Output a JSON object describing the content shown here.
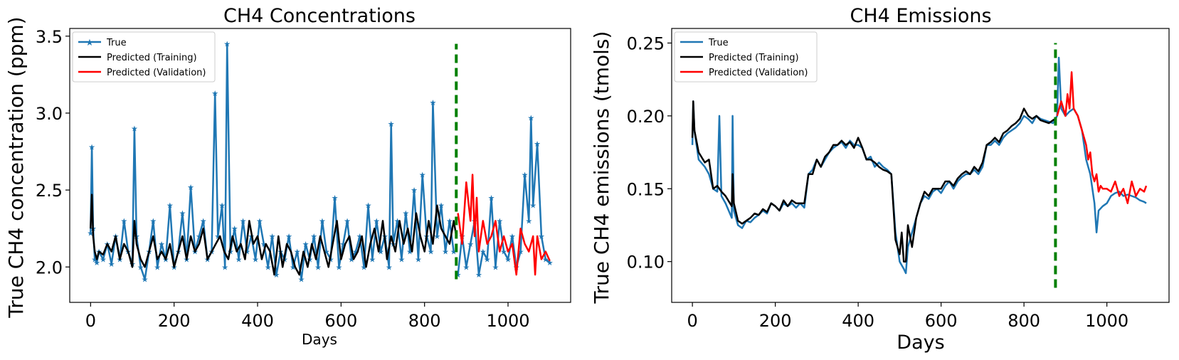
{
  "chart_data": [
    {
      "type": "line",
      "title": "CH4 Concentrations",
      "xlabel": "Days",
      "ylabel": "True CH4 concentration (ppm)",
      "xlim": [
        -50,
        1150
      ],
      "ylim": [
        1.77,
        3.55
      ],
      "xticks": [
        0,
        200,
        400,
        600,
        800,
        1000
      ],
      "yticks": [
        2.0,
        2.5,
        3.0,
        3.5
      ],
      "grid": false,
      "legend_position": "top-left",
      "split_day": 876,
      "split_range": [
        1.92,
        3.45
      ],
      "legend": [
        {
          "label": "True",
          "color": "#1f77b4",
          "marker": "star"
        },
        {
          "label": "Predicted (Training)",
          "color": "#000000"
        },
        {
          "label": "Predicted (Validation)",
          "color": "#ff0000"
        }
      ],
      "series": [
        {
          "name": "True",
          "color": "#1f77b4",
          "x": [
            0,
            3,
            6,
            10,
            15,
            20,
            30,
            40,
            50,
            60,
            70,
            80,
            90,
            100,
            105,
            110,
            120,
            130,
            140,
            150,
            160,
            170,
            180,
            190,
            200,
            210,
            220,
            230,
            240,
            250,
            260,
            270,
            280,
            290,
            298,
            305,
            315,
            322,
            327,
            335,
            345,
            355,
            365,
            375,
            385,
            395,
            405,
            415,
            425,
            435,
            445,
            455,
            465,
            475,
            485,
            495,
            505,
            515,
            525,
            535,
            545,
            555,
            565,
            575,
            585,
            595,
            605,
            615,
            625,
            635,
            645,
            655,
            665,
            675,
            685,
            695,
            705,
            715,
            720,
            725,
            735,
            745,
            755,
            765,
            775,
            785,
            795,
            805,
            815,
            820,
            830,
            840,
            850,
            860,
            870
          ],
          "y": [
            2.22,
            2.78,
            2.25,
            2.05,
            2.03,
            2.1,
            2.05,
            2.15,
            2.02,
            2.2,
            2.05,
            2.3,
            2.1,
            2.02,
            2.9,
            2.2,
            2.0,
            1.92,
            2.1,
            2.3,
            2.0,
            2.15,
            2.05,
            2.4,
            2.0,
            2.1,
            2.35,
            2.05,
            2.52,
            2.1,
            2.2,
            2.3,
            2.05,
            2.1,
            3.13,
            2.2,
            2.4,
            2.0,
            3.45,
            2.1,
            2.25,
            2.05,
            2.3,
            2.1,
            2.2,
            2.05,
            2.3,
            2.15,
            2.0,
            2.2,
            1.95,
            2.1,
            2.05,
            2.2,
            2.0,
            2.1,
            1.92,
            2.15,
            2.05,
            2.2,
            2.0,
            2.3,
            2.1,
            2.05,
            2.45,
            2.0,
            2.15,
            2.3,
            2.05,
            2.1,
            2.2,
            2.0,
            2.4,
            2.05,
            2.3,
            2.1,
            2.2,
            2.0,
            2.93,
            2.15,
            2.3,
            2.05,
            2.35,
            2.1,
            2.5,
            2.05,
            2.6,
            2.2,
            2.1,
            3.07,
            2.2,
            2.4,
            2.1,
            2.3,
            2.1
          ]
        },
        {
          "name": "True",
          "color": "#1f77b4",
          "x": [
            880,
            890,
            900,
            910,
            920,
            930,
            940,
            950,
            960,
            970,
            980,
            990,
            1000,
            1010,
            1020,
            1030,
            1040,
            1050,
            1055,
            1060,
            1070,
            1080,
            1090,
            1100
          ],
          "y": [
            1.95,
            2.2,
            2.0,
            2.15,
            2.3,
            1.95,
            2.1,
            2.05,
            2.45,
            2.0,
            2.3,
            2.1,
            2.05,
            2.2,
            2.0,
            2.1,
            2.6,
            2.3,
            2.97,
            2.4,
            2.8,
            2.2,
            2.05,
            2.03
          ]
        },
        {
          "name": "Predicted (Training)",
          "color": "#000000",
          "x": [
            0,
            3,
            6,
            10,
            15,
            20,
            30,
            40,
            50,
            60,
            70,
            80,
            90,
            100,
            105,
            110,
            120,
            130,
            140,
            150,
            160,
            170,
            180,
            190,
            200,
            210,
            220,
            230,
            240,
            250,
            260,
            270,
            280,
            290,
            300,
            310,
            320,
            330,
            340,
            350,
            360,
            370,
            380,
            390,
            400,
            410,
            420,
            430,
            440,
            450,
            460,
            470,
            480,
            490,
            500,
            510,
            520,
            530,
            540,
            550,
            560,
            570,
            580,
            590,
            600,
            610,
            620,
            630,
            640,
            650,
            660,
            670,
            680,
            690,
            700,
            710,
            720,
            730,
            740,
            750,
            760,
            770,
            780,
            790,
            800,
            810,
            820,
            830,
            840,
            850,
            860,
            870,
            876
          ],
          "y": [
            2.25,
            2.47,
            2.2,
            2.1,
            2.05,
            2.1,
            2.08,
            2.15,
            2.1,
            2.2,
            2.05,
            2.15,
            2.1,
            2.0,
            2.3,
            2.15,
            2.05,
            2.0,
            2.1,
            2.2,
            2.05,
            2.1,
            2.05,
            2.15,
            2.0,
            2.1,
            2.2,
            2.05,
            2.2,
            2.1,
            2.15,
            2.25,
            2.05,
            2.1,
            2.15,
            2.2,
            2.1,
            2.05,
            2.2,
            2.1,
            2.15,
            2.05,
            2.3,
            2.15,
            2.2,
            2.05,
            2.15,
            2.1,
            1.95,
            2.2,
            2.0,
            2.15,
            2.1,
            2.0,
            1.95,
            2.1,
            2.0,
            2.15,
            2.05,
            2.2,
            2.1,
            2.0,
            2.15,
            2.3,
            2.05,
            2.15,
            2.2,
            2.05,
            2.1,
            2.2,
            2.0,
            2.15,
            2.25,
            2.1,
            2.3,
            2.05,
            2.2,
            2.1,
            2.3,
            2.15,
            2.25,
            2.1,
            2.35,
            2.2,
            2.1,
            2.3,
            2.15,
            2.4,
            2.25,
            2.2,
            2.15,
            2.3,
            2.2
          ]
        },
        {
          "name": "Predicted (Validation)",
          "color": "#ff0000",
          "x": [
            880,
            890,
            900,
            910,
            915,
            920,
            925,
            930,
            940,
            950,
            960,
            970,
            980,
            990,
            1000,
            1010,
            1020,
            1030,
            1040,
            1050,
            1060,
            1065,
            1070,
            1080,
            1090,
            1100
          ],
          "y": [
            2.35,
            2.15,
            2.55,
            2.3,
            2.6,
            2.2,
            2.45,
            2.1,
            2.3,
            2.15,
            2.2,
            2.3,
            2.1,
            2.2,
            2.1,
            2.15,
            1.95,
            2.25,
            2.15,
            2.1,
            2.2,
            1.95,
            2.2,
            2.05,
            2.1,
            2.04
          ]
        }
      ]
    },
    {
      "type": "line",
      "title": "CH4 Emissions",
      "xlabel": "Days",
      "ylabel": "True CH4 emissions (tmols)",
      "xlim": [
        -50,
        1150
      ],
      "ylim": [
        0.072,
        0.26
      ],
      "xticks": [
        0,
        200,
        400,
        600,
        800,
        1000
      ],
      "yticks": [
        0.1,
        0.15,
        0.2,
        0.25
      ],
      "grid": false,
      "legend_position": "top-left",
      "split_day": 876,
      "split_range": [
        0.082,
        0.25
      ],
      "legend": [
        {
          "label": "True",
          "color": "#1f77b4"
        },
        {
          "label": "Predicted (Training)",
          "color": "#000000"
        },
        {
          "label": "Predicted (Validation)",
          "color": "#ff0000"
        }
      ],
      "series": [
        {
          "name": "True",
          "color": "#1f77b4",
          "x": [
            0,
            2,
            5,
            15,
            30,
            40,
            50,
            60,
            65,
            70,
            80,
            95,
            97,
            100,
            110,
            120,
            130,
            140,
            150,
            160,
            170,
            180,
            190,
            200,
            210,
            220,
            230,
            240,
            250,
            260,
            270,
            280,
            290,
            300,
            310,
            320,
            330,
            340,
            350,
            360,
            370,
            380,
            390,
            400,
            410,
            420,
            430,
            440,
            450,
            460,
            470,
            480,
            490,
            500,
            510,
            515,
            520,
            530,
            540,
            550,
            560,
            570,
            580,
            590,
            600,
            610,
            620,
            630,
            640,
            650,
            660,
            670,
            680,
            690,
            700,
            710,
            720,
            730,
            740,
            750,
            760,
            770,
            780,
            790,
            800,
            810,
            820,
            830,
            840,
            850,
            860,
            870,
            880,
            884,
            890,
            900,
            910,
            920,
            930,
            940,
            950,
            960,
            970,
            975,
            980,
            990,
            1000,
            1010,
            1020,
            1030,
            1040,
            1050,
            1060,
            1070,
            1080,
            1090,
            1095
          ],
          "y": [
            0.18,
            0.21,
            0.19,
            0.17,
            0.165,
            0.16,
            0.15,
            0.148,
            0.2,
            0.145,
            0.14,
            0.13,
            0.2,
            0.135,
            0.125,
            0.123,
            0.128,
            0.127,
            0.13,
            0.132,
            0.135,
            0.133,
            0.14,
            0.138,
            0.135,
            0.14,
            0.138,
            0.14,
            0.137,
            0.14,
            0.137,
            0.16,
            0.163,
            0.17,
            0.165,
            0.17,
            0.175,
            0.178,
            0.18,
            0.182,
            0.178,
            0.183,
            0.18,
            0.18,
            0.178,
            0.17,
            0.172,
            0.165,
            0.168,
            0.165,
            0.163,
            0.16,
            0.12,
            0.1,
            0.095,
            0.092,
            0.11,
            0.12,
            0.13,
            0.14,
            0.145,
            0.143,
            0.148,
            0.15,
            0.147,
            0.152,
            0.155,
            0.15,
            0.155,
            0.158,
            0.16,
            0.16,
            0.163,
            0.16,
            0.165,
            0.18,
            0.18,
            0.183,
            0.18,
            0.185,
            0.188,
            0.19,
            0.192,
            0.195,
            0.2,
            0.198,
            0.195,
            0.2,
            0.198,
            0.197,
            0.196,
            0.195,
            0.2,
            0.24,
            0.205,
            0.2,
            0.203,
            0.205,
            0.2,
            0.19,
            0.17,
            0.16,
            0.14,
            0.12,
            0.135,
            0.138,
            0.14,
            0.145,
            0.147,
            0.148,
            0.145,
            0.146,
            0.145,
            0.144,
            0.142,
            0.141,
            0.14
          ]
        },
        {
          "name": "Predicted (Training)",
          "color": "#000000",
          "x": [
            0,
            2,
            5,
            15,
            30,
            40,
            50,
            60,
            70,
            80,
            95,
            97,
            100,
            110,
            120,
            130,
            140,
            150,
            160,
            170,
            180,
            190,
            200,
            210,
            220,
            230,
            240,
            250,
            260,
            270,
            280,
            290,
            300,
            310,
            320,
            330,
            340,
            350,
            360,
            370,
            380,
            390,
            400,
            410,
            420,
            430,
            440,
            450,
            460,
            470,
            480,
            490,
            500,
            505,
            510,
            515,
            520,
            530,
            540,
            550,
            560,
            570,
            580,
            590,
            600,
            610,
            620,
            630,
            640,
            650,
            660,
            670,
            680,
            690,
            700,
            710,
            720,
            730,
            740,
            750,
            760,
            770,
            780,
            790,
            800,
            810,
            820,
            830,
            840,
            850,
            860,
            870,
            876
          ],
          "y": [
            0.185,
            0.21,
            0.19,
            0.175,
            0.168,
            0.17,
            0.15,
            0.152,
            0.148,
            0.145,
            0.138,
            0.16,
            0.14,
            0.128,
            0.126,
            0.128,
            0.13,
            0.133,
            0.132,
            0.136,
            0.134,
            0.14,
            0.138,
            0.135,
            0.142,
            0.138,
            0.142,
            0.14,
            0.14,
            0.14,
            0.16,
            0.16,
            0.17,
            0.165,
            0.172,
            0.175,
            0.18,
            0.18,
            0.183,
            0.18,
            0.182,
            0.178,
            0.185,
            0.178,
            0.17,
            0.17,
            0.168,
            0.165,
            0.163,
            0.162,
            0.16,
            0.115,
            0.105,
            0.12,
            0.1,
            0.1,
            0.125,
            0.11,
            0.13,
            0.14,
            0.148,
            0.145,
            0.15,
            0.15,
            0.15,
            0.155,
            0.155,
            0.152,
            0.157,
            0.16,
            0.162,
            0.16,
            0.165,
            0.162,
            0.168,
            0.18,
            0.182,
            0.185,
            0.182,
            0.188,
            0.19,
            0.193,
            0.195,
            0.198,
            0.205,
            0.2,
            0.198,
            0.2,
            0.197,
            0.196,
            0.195,
            0.197,
            0.198
          ]
        },
        {
          "name": "Predicted (Validation)",
          "color": "#ff0000",
          "x": [
            880,
            890,
            900,
            905,
            910,
            915,
            920,
            930,
            940,
            950,
            955,
            960,
            965,
            970,
            975,
            980,
            985,
            990,
            1000,
            1010,
            1020,
            1030,
            1040,
            1050,
            1060,
            1070,
            1080,
            1090,
            1095
          ],
          "y": [
            0.2,
            0.21,
            0.2,
            0.215,
            0.205,
            0.23,
            0.205,
            0.2,
            0.19,
            0.18,
            0.17,
            0.175,
            0.16,
            0.155,
            0.16,
            0.148,
            0.152,
            0.15,
            0.15,
            0.148,
            0.155,
            0.145,
            0.15,
            0.14,
            0.155,
            0.145,
            0.15,
            0.148,
            0.152
          ]
        }
      ]
    }
  ]
}
